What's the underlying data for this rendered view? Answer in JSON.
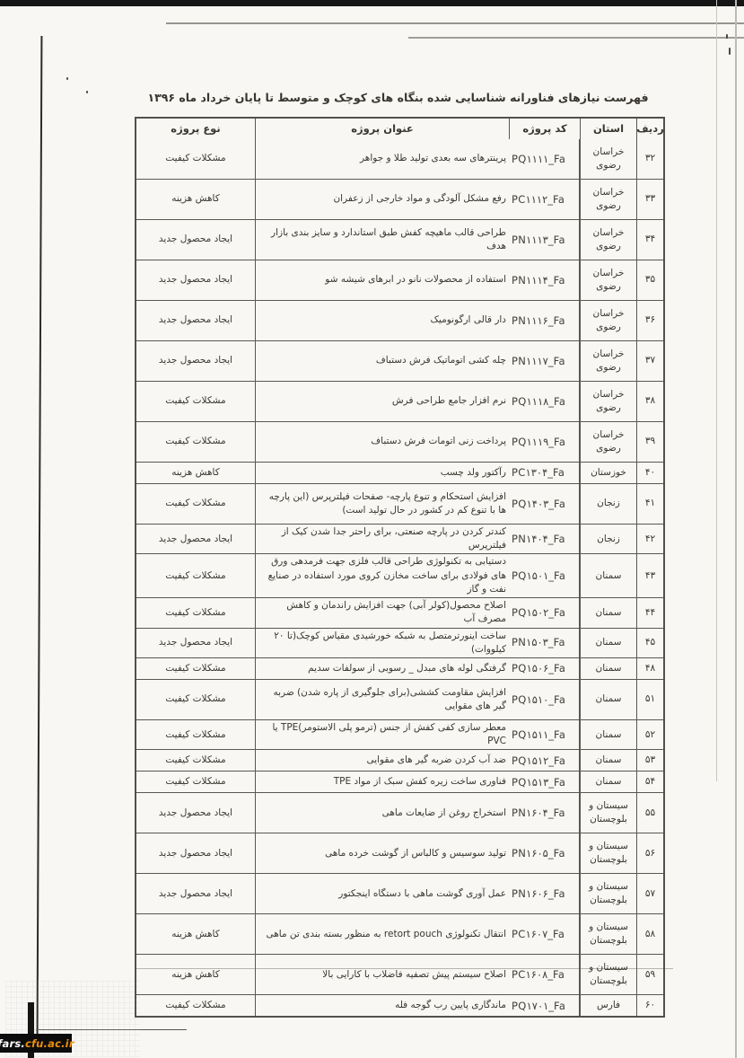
{
  "page": {
    "title": "فهرست نیازهای فناورانه شناسایی شده بنگاه های کوچک و متوسط تا پایان خرداد ماه ۱۳۹۶",
    "watermark": {
      "prefix": "fars.",
      "suffix": "cfu.ac.ir",
      "prefix_color": "#ffffff",
      "suffix_color": "#ec8f0c",
      "background": "#0c0c0c"
    }
  },
  "table": {
    "headers": {
      "row": "ردیف",
      "province": "استان",
      "code": "کد پروژه",
      "title": "عنوان پروژه",
      "type": "نوع پروژه"
    },
    "type_values": [
      "مشکلات کیفیت",
      "کاهش هزینه",
      "ایجاد محصول جدید"
    ],
    "rows": [
      {
        "no": "۳۲",
        "province": "خراسان رضوی",
        "code": "PQ۱۱۱۱_Fa",
        "title": "پرینترهای سه بعدی تولید طلا و جواهر",
        "type": "مشکلات کیفیت",
        "h": "tall"
      },
      {
        "no": "۳۳",
        "province": "خراسان رضوی",
        "code": "PC۱۱۱۲_Fa",
        "title": "رفع مشکل آلودگی و مواد خارجی از زعفران",
        "type": "کاهش هزینه",
        "h": "tall"
      },
      {
        "no": "۳۴",
        "province": "خراسان رضوی",
        "code": "PN۱۱۱۳_Fa",
        "title": "طراحی قالب ماهیچه کفش طبق استاندارد و سایز بندی بازار هدف",
        "type": "ایجاد محصول جدید",
        "h": "tall"
      },
      {
        "no": "۳۵",
        "province": "خراسان رضوی",
        "code": "PN۱۱۱۴_Fa",
        "title": "استفاده از محصولات نانو در ابرهای شیشه شو",
        "type": "ایجاد محصول جدید",
        "h": "tall"
      },
      {
        "no": "۳۶",
        "province": "خراسان رضوی",
        "code": "PN۱۱۱۶_Fa",
        "title": "دار قالی ارگونومیک",
        "type": "ایجاد محصول جدید",
        "h": "tall"
      },
      {
        "no": "۳۷",
        "province": "خراسان رضوی",
        "code": "PN۱۱۱۷_Fa",
        "title": "چله کشی اتوماتیک فرش دستباف",
        "type": "ایجاد محصول جدید",
        "h": "tall"
      },
      {
        "no": "۳۸",
        "province": "خراسان رضوی",
        "code": "PQ۱۱۱۸_Fa",
        "title": "نرم افزار جامع طراحی فرش",
        "type": "مشکلات کیفیت",
        "h": "tall"
      },
      {
        "no": "۳۹",
        "province": "خراسان رضوی",
        "code": "PQ۱۱۱۹_Fa",
        "title": "پرداخت زنی اتومات فرش دستباف",
        "type": "مشکلات کیفیت",
        "h": "tall"
      },
      {
        "no": "۴۰",
        "province": "خوزستان",
        "code": "PC۱۳۰۴_Fa",
        "title": "رآکتور ولد چسب",
        "type": "کاهش هزینه",
        "h": "short"
      },
      {
        "no": "۴۱",
        "province": "زنجان",
        "code": "PQ۱۴۰۳_Fa",
        "title": "افزایش استحکام و تنوع پارچه- صفحات فیلترپرس (این پارچه ها با تنوع کم در کشور در حال تولید است)",
        "type": "مشکلات کیفیت",
        "h": "mid"
      },
      {
        "no": "۴۲",
        "province": "زنجان",
        "code": "PN۱۴۰۴_Fa",
        "title": "کندتر کردن در پارچه صنعتی، برای راحتر جدا شدن کیک از فیلترپرس",
        "type": "ایجاد محصول جدید",
        "h": "short"
      },
      {
        "no": "۴۳",
        "province": "سمنان",
        "code": "PQ۱۵۰۱_Fa",
        "title": "دستیابی به تکنولوژی طراحی قالب فلزی جهت فرمدهی ورق های فولادی برای ساخت مخازن کروی مورد استفاده در صنایع نفت و گاز",
        "type": "مشکلات کیفیت",
        "h": "mid"
      },
      {
        "no": "۴۴",
        "province": "سمنان",
        "code": "PQ۱۵۰۲_Fa",
        "title": "اصلاح محصول(کولر آبی) جهت افزایش راندمان و کاهش مصرف آب",
        "type": "مشکلات کیفیت",
        "h": "short"
      },
      {
        "no": "۴۵",
        "province": "سمنان",
        "code": "PN۱۵۰۳_Fa",
        "title": "ساخت اینورترمتصل به شبکه خورشیدی مقیاس کوچک(تا ۲۰ کیلووات)",
        "type": "ایجاد محصول جدید",
        "h": "short"
      },
      {
        "no": "۴۸",
        "province": "سمنان",
        "code": "PQ۱۵۰۶_Fa",
        "title": "گرفتگی لوله های مبدل _ رسوبی از سولفات سدیم",
        "type": "مشکلات کیفیت",
        "h": "short"
      },
      {
        "no": "۵۱",
        "province": "سمنان",
        "code": "PQ۱۵۱۰_Fa",
        "title": "افزایش مقاومت کششی(برای جلوگیری از پاره شدن) ضربه گیر های مقوایی",
        "type": "مشکلات کیفیت",
        "h": "mid"
      },
      {
        "no": "۵۲",
        "province": "سمنان",
        "code": "PQ۱۵۱۱_Fa",
        "title": "معطر سازی کفی کفش از جنس (ترمو پلی الاستومر)TPE یا PVC",
        "type": "مشکلات کیفیت",
        "h": "short"
      },
      {
        "no": "۵۳",
        "province": "سمنان",
        "code": "PQ۱۵۱۲_Fa",
        "title": "ضد آب کردن ضربه گیر های مقوایی",
        "type": "مشکلات کیفیت",
        "h": "short"
      },
      {
        "no": "۵۴",
        "province": "سمنان",
        "code": "PQ۱۵۱۳_Fa",
        "title": "فناوری ساخت زیره کفش سبک از مواد TPE",
        "type": "مشکلات کیفیت",
        "h": "short"
      },
      {
        "no": "۵۵",
        "province": "سیستان و بلوچستان",
        "code": "PN۱۶۰۴_Fa",
        "title": "استخراج روغن از ضایعات ماهی",
        "type": "ایجاد محصول جدید",
        "h": "tall"
      },
      {
        "no": "۵۶",
        "province": "سیستان و بلوچستان",
        "code": "PN۱۶۰۵_Fa",
        "title": "تولید سوسیس و کالباس از گوشت خرده ماهی",
        "type": "ایجاد محصول جدید",
        "h": "tall"
      },
      {
        "no": "۵۷",
        "province": "سیستان و بلوچستان",
        "code": "PN۱۶۰۶_Fa",
        "title": "عمل آوری گوشت ماهی با دستگاه اینجکتور",
        "type": "ایجاد محصول جدید",
        "h": "tall"
      },
      {
        "no": "۵۸",
        "province": "سیستان و بلوچستان",
        "code": "PC۱۶۰۷_Fa",
        "title": "انتقال تکنولوژی retort pouch به منظور بسته بندی تن ماهی",
        "type": "کاهش هزینه",
        "h": "tall"
      },
      {
        "no": "۵۹",
        "province": "سیستان و بلوچستان",
        "code": "PC۱۶۰۸_Fa",
        "title": "اصلاح سیستم پیش تصفیه فاضلاب با کارایی بالا",
        "type": "کاهش هزینه",
        "h": "tall"
      },
      {
        "no": "۶۰",
        "province": "فارس",
        "code": "PQ۱۷۰۱_Fa",
        "title": "ماندگاری پایین رب گوجه فله",
        "type": "مشکلات کیفیت",
        "h": "short"
      }
    ]
  }
}
